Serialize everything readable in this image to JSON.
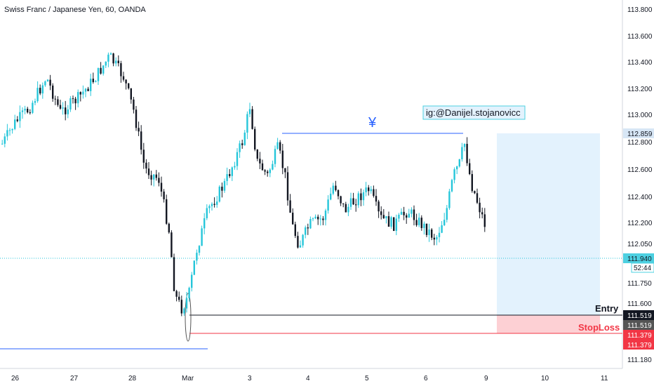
{
  "header": {
    "title": "Swiss Franc / Japanese Yen, 60, OANDA"
  },
  "price_axis": {
    "ticks": [
      "113.800",
      "113.600",
      "113.400",
      "113.200",
      "113.000",
      "112.800",
      "112.600",
      "112.400",
      "112.200",
      "112.050",
      "111.750",
      "111.600",
      "111.180"
    ],
    "badges": [
      {
        "text": "112.859",
        "bg": "#d7e6f5",
        "fg": "#131722"
      },
      {
        "text": "111.940",
        "bg": "#4dd0e1",
        "fg": "#131722"
      },
      {
        "text": "52:44",
        "bg": "#ffffff",
        "fg": "#131722"
      },
      {
        "text": "111.519",
        "bg": "#131722",
        "fg": "#ffffff"
      },
      {
        "text": "111.519",
        "bg": "#555555",
        "fg": "#ffffff"
      },
      {
        "text": "111.379",
        "bg": "#f23645",
        "fg": "#ffffff"
      },
      {
        "text": "111.379",
        "bg": "#f23645",
        "fg": "#ffffff"
      }
    ]
  },
  "time_axis": {
    "ticks": [
      "26",
      "27",
      "28",
      "Mar",
      "3",
      "4",
      "5",
      "6",
      "9",
      "10",
      "11"
    ]
  },
  "annotations": {
    "watermark_label": "ig:@Danijel.stojanovicc",
    "currency_symbol": "¥",
    "entry_label": "Entry",
    "stoploss_label": "StopLoss"
  },
  "colors": {
    "up": "#26c6da",
    "down": "#131722",
    "level_line": "#2962ff",
    "target_zone": "#e3f2fd",
    "stop_zone": "#fdd0d4",
    "stop_line": "#f23645",
    "entry_line": "#131722",
    "current_price_line": "#26c6da"
  }
}
